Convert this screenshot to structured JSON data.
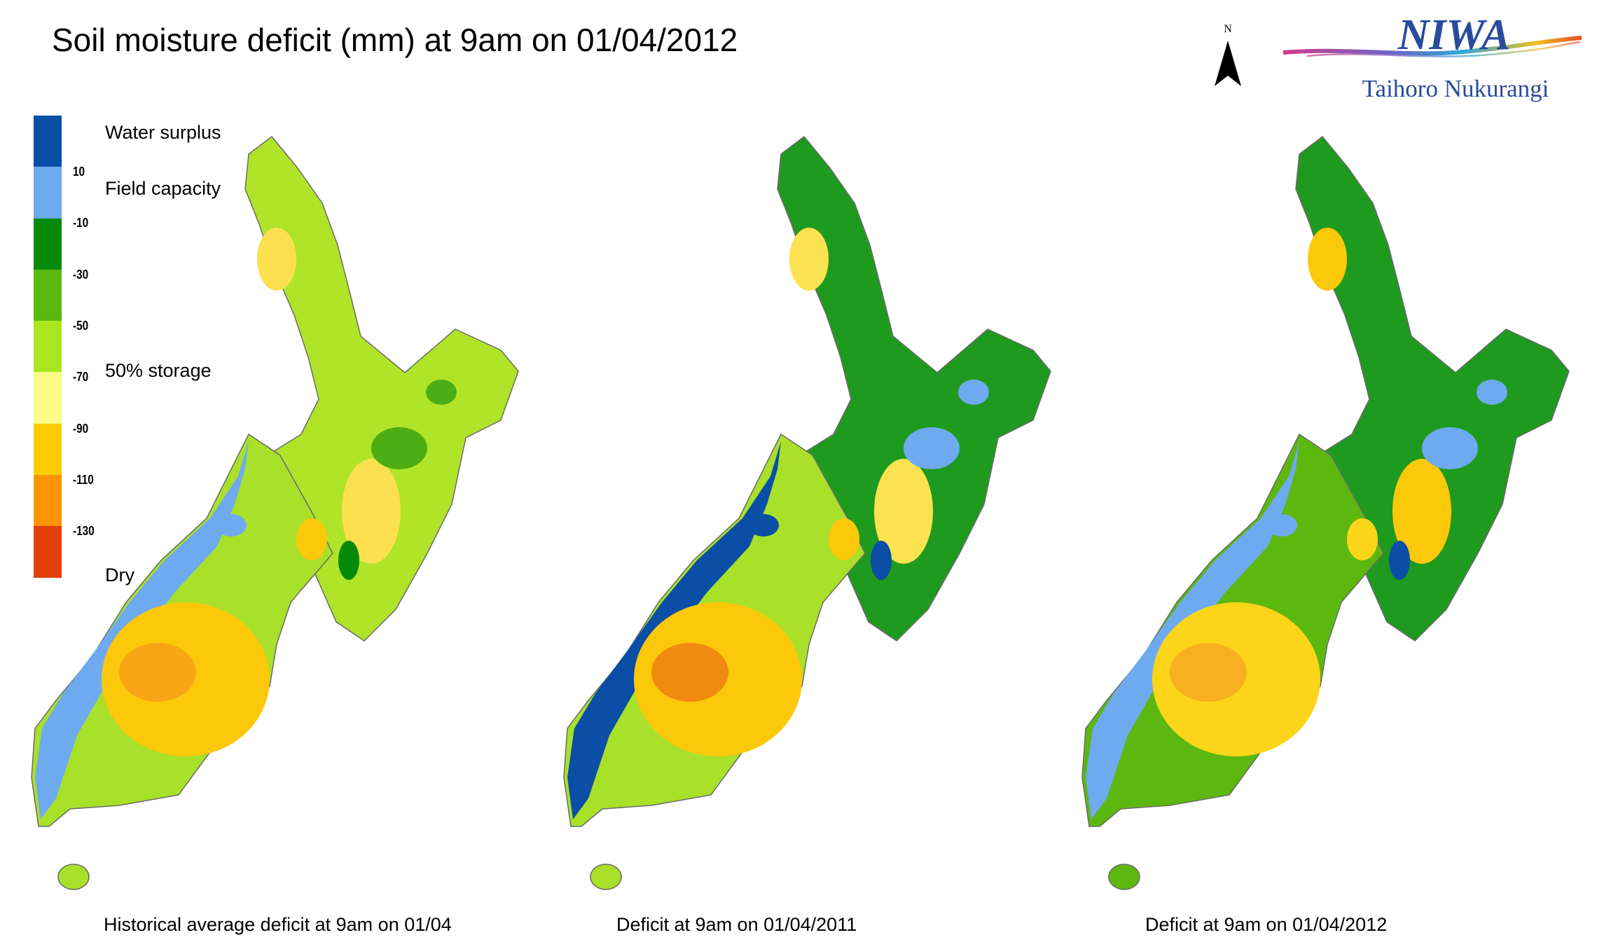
{
  "title": "Soil moisture deficit (mm) at  9am on 01/04/2012",
  "legend": {
    "colors": [
      "#0a4ea6",
      "#6eaaf0",
      "#078a0a",
      "#5cb80f",
      "#a9e61f",
      "#fbfb85",
      "#fccd05",
      "#fb9600",
      "#e43f0a"
    ],
    "ticks": [
      "10",
      "-10",
      "-30",
      "-50",
      "-70",
      "-90",
      "-110",
      "-130"
    ],
    "labels": {
      "surplus": "Water surplus",
      "field": "Field capacity",
      "storage": "50% storage",
      "dry": "Dry"
    }
  },
  "north_label": "N",
  "logo": {
    "name": "NIWA",
    "subtitle": "Taihoro Nukurangi"
  },
  "maps": [
    {
      "caption": "Historical average deficit at  9am on 01/04",
      "north_base": "#b0e428",
      "north_accent": "#4cae14",
      "north_wet": "#078a0a",
      "north_dry": "#fce050",
      "south_base": "#a8e02a",
      "south_wet": "#6eaaf0",
      "south_dry": "#fcc80a",
      "south_core": "#f8a516"
    },
    {
      "caption": "Deficit at  9am on 01/04/2011",
      "north_base": "#1e9a1e",
      "north_accent": "#6eaaf0",
      "north_wet": "#0a4ea6",
      "north_dry": "#fbe250",
      "south_base": "#a8e02a",
      "south_wet": "#0a4ea6",
      "south_dry": "#fcc80a",
      "south_core": "#f08a10"
    },
    {
      "caption": "Deficit at  9am on 01/04/2012",
      "north_base": "#1e9a1e",
      "north_accent": "#6eaaf0",
      "north_wet": "#0a4ea6",
      "north_dry": "#fcc80a",
      "south_base": "#5cb80f",
      "south_wet": "#6eaaf0",
      "south_dry": "#fcd51a",
      "south_core": "#f8b020"
    }
  ]
}
